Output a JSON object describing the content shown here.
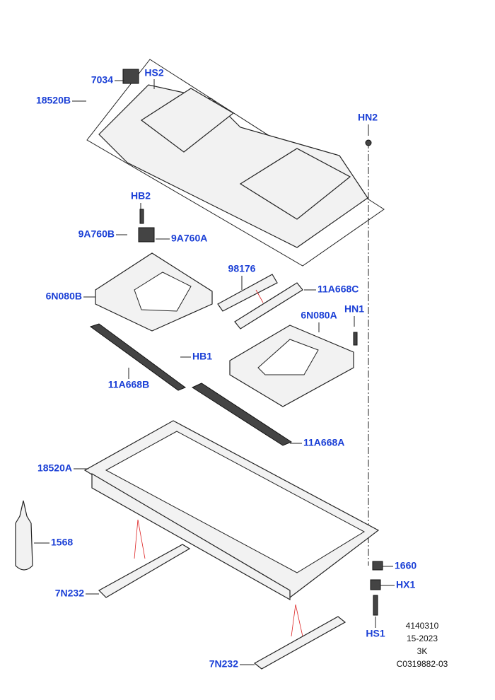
{
  "callouts": [
    "7034",
    "HS2",
    "18520B",
    "HN2",
    "HB2",
    "9A760B",
    "9A760A",
    "98176",
    "11A668C",
    "6N080B",
    "6N080A",
    "HN1",
    "HB1",
    "11A668B",
    "11A668A",
    "18520A",
    "1568",
    "1660",
    "HX1",
    "7N232",
    "HS1",
    "7N232"
  ],
  "footer": [
    "4140310",
    "15-2023",
    "3K",
    "C0319882-03"
  ]
}
